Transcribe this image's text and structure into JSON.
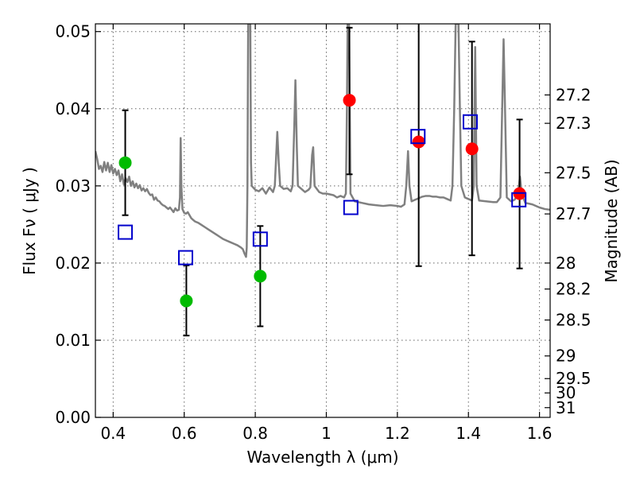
{
  "chart_data": {
    "type": "scatter",
    "title": "",
    "xlabel": "Wavelength  λ (μm)",
    "ylabel": "Flux  Fν  ( μJy )",
    "ylabel_right": "Magnitude (AB)",
    "xlim": [
      0.35,
      1.63
    ],
    "ylim": [
      0.0,
      0.051
    ],
    "grid": true,
    "legend": "none",
    "x_ticks": [
      {
        "value": 0.4,
        "label": "0.4"
      },
      {
        "value": 0.6,
        "label": "0.6"
      },
      {
        "value": 0.8,
        "label": "0.8"
      },
      {
        "value": 1.0,
        "label": "1"
      },
      {
        "value": 1.2,
        "label": "1.2"
      },
      {
        "value": 1.4,
        "label": "1.4"
      },
      {
        "value": 1.6,
        "label": "1.6"
      }
    ],
    "y_ticks": [
      {
        "value": 0.0,
        "label": "0.00"
      },
      {
        "value": 0.01,
        "label": "0.01"
      },
      {
        "value": 0.02,
        "label": "0.02"
      },
      {
        "value": 0.03,
        "label": "0.03"
      },
      {
        "value": 0.04,
        "label": "0.04"
      },
      {
        "value": 0.05,
        "label": "0.05"
      }
    ],
    "y_right_ticks": [
      {
        "value": 27.2,
        "label": "27.2"
      },
      {
        "value": 27.3,
        "label": "27.3"
      },
      {
        "value": 27.5,
        "label": "27.5"
      },
      {
        "value": 27.7,
        "label": "27.7"
      },
      {
        "value": 28.0,
        "label": "28"
      },
      {
        "value": 28.2,
        "label": "28.2"
      },
      {
        "value": 28.5,
        "label": "28.5"
      },
      {
        "value": 29.0,
        "label": "29"
      },
      {
        "value": 29.5,
        "label": "29.5"
      },
      {
        "value": 30.0,
        "label": "30"
      },
      {
        "value": 31.0,
        "label": "31"
      }
    ],
    "colors": {
      "spectrum": "#808080",
      "green": "#00bb00",
      "red": "#ff0000",
      "model": "#0000cc",
      "errorbar": "#000000"
    },
    "series": [
      {
        "kind": "spectrum",
        "points": [
          [
            0.35,
            0.0345
          ],
          [
            0.355,
            0.0335
          ],
          [
            0.36,
            0.0322
          ],
          [
            0.365,
            0.0326
          ],
          [
            0.37,
            0.0318
          ],
          [
            0.375,
            0.0331
          ],
          [
            0.38,
            0.032
          ],
          [
            0.385,
            0.033
          ],
          [
            0.39,
            0.0318
          ],
          [
            0.395,
            0.0327
          ],
          [
            0.4,
            0.0316
          ],
          [
            0.405,
            0.0322
          ],
          [
            0.41,
            0.0314
          ],
          [
            0.415,
            0.032
          ],
          [
            0.42,
            0.0306
          ],
          [
            0.425,
            0.0315
          ],
          [
            0.43,
            0.0302
          ],
          [
            0.435,
            0.031
          ],
          [
            0.44,
            0.0305
          ],
          [
            0.445,
            0.0312
          ],
          [
            0.45,
            0.03
          ],
          [
            0.455,
            0.0306
          ],
          [
            0.46,
            0.0298
          ],
          [
            0.465,
            0.0303
          ],
          [
            0.47,
            0.0297
          ],
          [
            0.475,
            0.0301
          ],
          [
            0.48,
            0.0294
          ],
          [
            0.485,
            0.0297
          ],
          [
            0.49,
            0.0293
          ],
          [
            0.495,
            0.0296
          ],
          [
            0.5,
            0.0291
          ],
          [
            0.505,
            0.0288
          ],
          [
            0.51,
            0.0289
          ],
          [
            0.515,
            0.0282
          ],
          [
            0.52,
            0.0285
          ],
          [
            0.525,
            0.0281
          ],
          [
            0.53,
            0.028
          ],
          [
            0.535,
            0.0277
          ],
          [
            0.54,
            0.0275
          ],
          [
            0.545,
            0.0274
          ],
          [
            0.55,
            0.0272
          ],
          [
            0.555,
            0.027
          ],
          [
            0.56,
            0.0272
          ],
          [
            0.565,
            0.0269
          ],
          [
            0.57,
            0.0266
          ],
          [
            0.575,
            0.0271
          ],
          [
            0.58,
            0.0268
          ],
          [
            0.585,
            0.0269
          ],
          [
            0.588,
            0.0285
          ],
          [
            0.59,
            0.0362
          ],
          [
            0.592,
            0.03
          ],
          [
            0.595,
            0.027
          ],
          [
            0.6,
            0.0265
          ],
          [
            0.605,
            0.0264
          ],
          [
            0.61,
            0.0266
          ],
          [
            0.615,
            0.0262
          ],
          [
            0.62,
            0.0258
          ],
          [
            0.625,
            0.0256
          ],
          [
            0.63,
            0.0254
          ],
          [
            0.64,
            0.0252
          ],
          [
            0.65,
            0.0249
          ],
          [
            0.66,
            0.0246
          ],
          [
            0.67,
            0.0243
          ],
          [
            0.68,
            0.024
          ],
          [
            0.69,
            0.0237
          ],
          [
            0.7,
            0.0234
          ],
          [
            0.71,
            0.0231
          ],
          [
            0.72,
            0.0229
          ],
          [
            0.73,
            0.0227
          ],
          [
            0.74,
            0.0225
          ],
          [
            0.75,
            0.0223
          ],
          [
            0.76,
            0.022
          ],
          [
            0.765,
            0.0218
          ],
          [
            0.77,
            0.0212
          ],
          [
            0.774,
            0.0208
          ],
          [
            0.776,
            0.022
          ],
          [
            0.778,
            0.03
          ],
          [
            0.78,
            0.051
          ],
          [
            0.786,
            0.051
          ],
          [
            0.788,
            0.033
          ],
          [
            0.79,
            0.03
          ],
          [
            0.8,
            0.0295
          ],
          [
            0.81,
            0.0293
          ],
          [
            0.82,
            0.0297
          ],
          [
            0.83,
            0.029
          ],
          [
            0.84,
            0.0298
          ],
          [
            0.85,
            0.0292
          ],
          [
            0.855,
            0.03
          ],
          [
            0.858,
            0.033
          ],
          [
            0.862,
            0.037
          ],
          [
            0.866,
            0.033
          ],
          [
            0.87,
            0.03
          ],
          [
            0.88,
            0.0296
          ],
          [
            0.89,
            0.0297
          ],
          [
            0.9,
            0.0293
          ],
          [
            0.905,
            0.03
          ],
          [
            0.91,
            0.038
          ],
          [
            0.913,
            0.0437
          ],
          [
            0.917,
            0.035
          ],
          [
            0.92,
            0.03
          ],
          [
            0.93,
            0.0296
          ],
          [
            0.94,
            0.0292
          ],
          [
            0.95,
            0.0295
          ],
          [
            0.955,
            0.0298
          ],
          [
            0.96,
            0.034
          ],
          [
            0.963,
            0.035
          ],
          [
            0.967,
            0.03
          ],
          [
            0.98,
            0.0292
          ],
          [
            0.99,
            0.029
          ],
          [
            1.0,
            0.029
          ],
          [
            1.01,
            0.0289
          ],
          [
            1.02,
            0.0288
          ],
          [
            1.03,
            0.0285
          ],
          [
            1.04,
            0.0287
          ],
          [
            1.05,
            0.0285
          ],
          [
            1.055,
            0.029
          ],
          [
            1.058,
            0.04
          ],
          [
            1.06,
            0.051
          ],
          [
            1.064,
            0.051
          ],
          [
            1.066,
            0.04
          ],
          [
            1.068,
            0.029
          ],
          [
            1.08,
            0.028
          ],
          [
            1.1,
            0.0278
          ],
          [
            1.12,
            0.0276
          ],
          [
            1.14,
            0.0275
          ],
          [
            1.16,
            0.0274
          ],
          [
            1.18,
            0.0275
          ],
          [
            1.2,
            0.0274
          ],
          [
            1.21,
            0.0273
          ],
          [
            1.22,
            0.0276
          ],
          [
            1.225,
            0.03
          ],
          [
            1.23,
            0.0345
          ],
          [
            1.234,
            0.03
          ],
          [
            1.24,
            0.028
          ],
          [
            1.25,
            0.0282
          ],
          [
            1.26,
            0.0284
          ],
          [
            1.27,
            0.0286
          ],
          [
            1.28,
            0.0287
          ],
          [
            1.29,
            0.0287
          ],
          [
            1.3,
            0.0286
          ],
          [
            1.31,
            0.0286
          ],
          [
            1.32,
            0.0285
          ],
          [
            1.33,
            0.0285
          ],
          [
            1.34,
            0.0283
          ],
          [
            1.35,
            0.0281
          ],
          [
            1.355,
            0.03
          ],
          [
            1.36,
            0.04
          ],
          [
            1.364,
            0.051
          ],
          [
            1.372,
            0.051
          ],
          [
            1.376,
            0.04
          ],
          [
            1.38,
            0.03
          ],
          [
            1.39,
            0.0285
          ],
          [
            1.4,
            0.0283
          ],
          [
            1.41,
            0.0281
          ],
          [
            1.415,
            0.03
          ],
          [
            1.419,
            0.048
          ],
          [
            1.423,
            0.03
          ],
          [
            1.43,
            0.0281
          ],
          [
            1.45,
            0.028
          ],
          [
            1.47,
            0.0279
          ],
          [
            1.48,
            0.0279
          ],
          [
            1.49,
            0.0285
          ],
          [
            1.495,
            0.04
          ],
          [
            1.499,
            0.049
          ],
          [
            1.503,
            0.04
          ],
          [
            1.508,
            0.0285
          ],
          [
            1.52,
            0.028
          ],
          [
            1.53,
            0.0282
          ],
          [
            1.54,
            0.029
          ],
          [
            1.545,
            0.0312
          ],
          [
            1.55,
            0.029
          ],
          [
            1.56,
            0.0278
          ],
          [
            1.58,
            0.0276
          ],
          [
            1.6,
            0.0272
          ],
          [
            1.615,
            0.027
          ],
          [
            1.63,
            0.0269
          ]
        ]
      },
      {
        "kind": "measured",
        "color": "green",
        "points": [
          {
            "x": 0.434,
            "y": 0.033,
            "yerr_low": 0.0262,
            "yerr_high": 0.0398
          },
          {
            "x": 0.606,
            "y": 0.0151,
            "yerr_low": 0.0106,
            "yerr_high": 0.0197
          },
          {
            "x": 0.814,
            "y": 0.0183,
            "yerr_low": 0.0118,
            "yerr_high": 0.0248
          }
        ]
      },
      {
        "kind": "measured",
        "color": "red",
        "points": [
          {
            "x": 1.065,
            "y": 0.0411,
            "yerr_low": 0.0315,
            "yerr_high": 0.0505
          },
          {
            "x": 1.26,
            "y": 0.0357,
            "yerr_low": 0.0196,
            "yerr_high": 0.0518
          },
          {
            "x": 1.41,
            "y": 0.0348,
            "yerr_low": 0.021,
            "yerr_high": 0.0487
          },
          {
            "x": 1.544,
            "y": 0.029,
            "yerr_low": 0.0193,
            "yerr_high": 0.0386
          }
        ]
      },
      {
        "kind": "model",
        "color": "model",
        "points": [
          {
            "x": 0.434,
            "y": 0.024
          },
          {
            "x": 0.604,
            "y": 0.0207
          },
          {
            "x": 0.814,
            "y": 0.0231
          },
          {
            "x": 1.069,
            "y": 0.0272
          },
          {
            "x": 1.258,
            "y": 0.0364
          },
          {
            "x": 1.405,
            "y": 0.0383
          },
          {
            "x": 1.542,
            "y": 0.0282
          }
        ]
      }
    ]
  }
}
